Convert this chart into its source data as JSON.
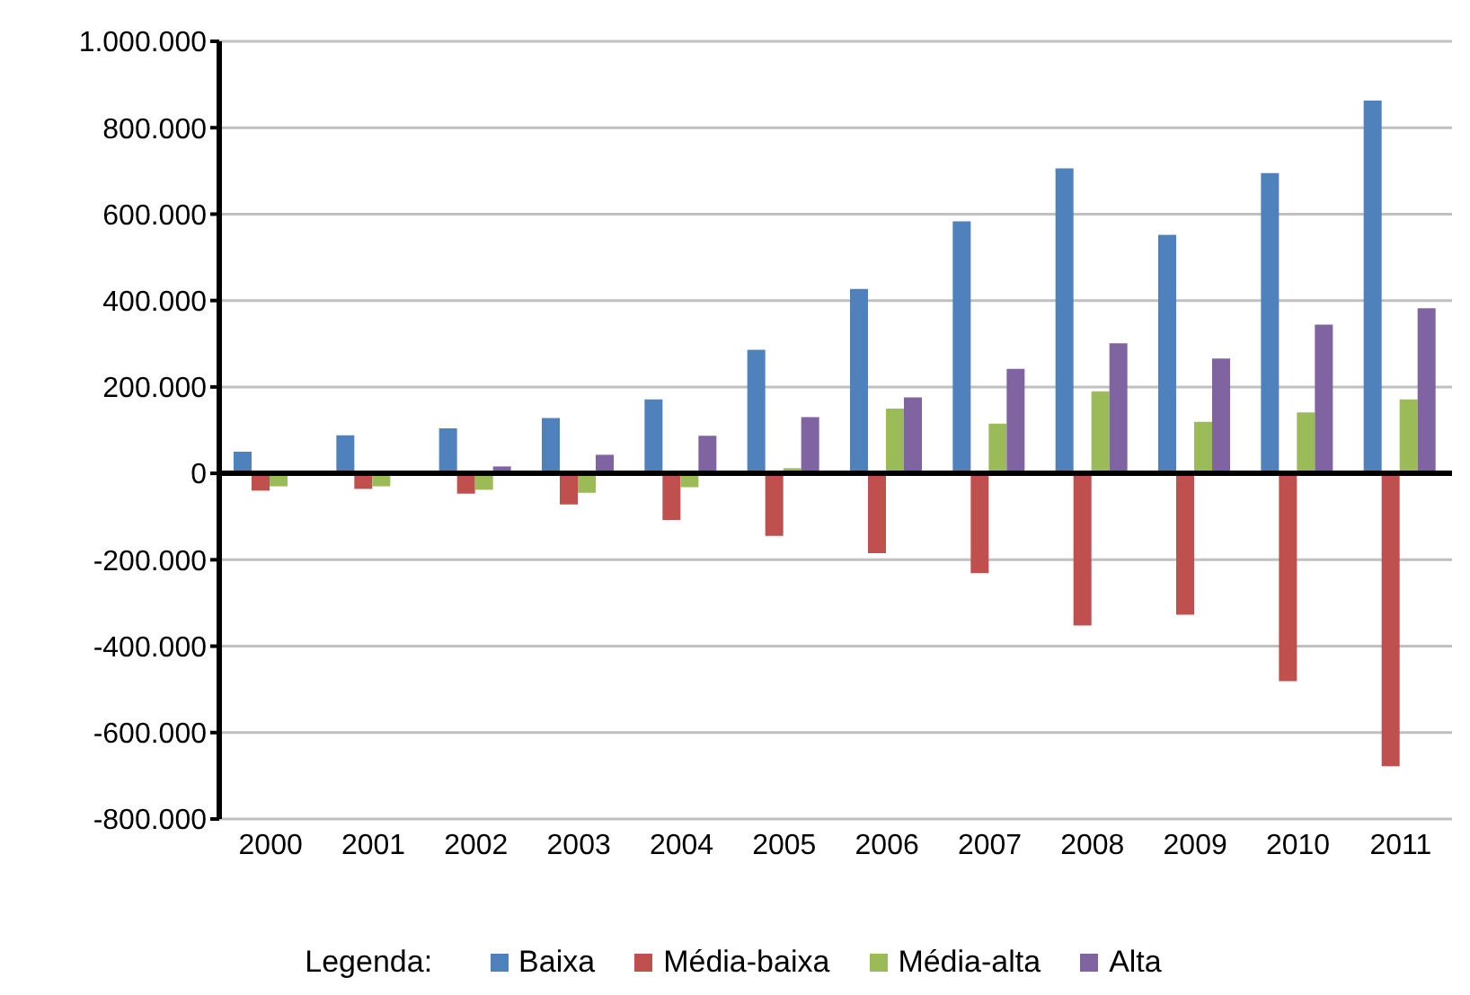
{
  "chart_data": {
    "type": "bar",
    "categories": [
      "2000",
      "2001",
      "2002",
      "2003",
      "2004",
      "2005",
      "2006",
      "2007",
      "2008",
      "2009",
      "2010",
      "2011"
    ],
    "series": [
      {
        "name": "Baixa",
        "color": "#4f81bd",
        "values": [
          50000,
          88000,
          104000,
          128000,
          171000,
          286000,
          427000,
          583000,
          706000,
          552000,
          695000,
          863000
        ]
      },
      {
        "name": "Média-baixa",
        "color": "#c0504d",
        "values": [
          -40000,
          -36000,
          -47000,
          -72000,
          -108000,
          -145000,
          -185000,
          -231000,
          -352000,
          -327000,
          -481000,
          -678000
        ]
      },
      {
        "name": "Média-alta",
        "color": "#9bbb59",
        "values": [
          -30000,
          -30000,
          -38000,
          -45000,
          -32000,
          12000,
          150000,
          115000,
          190000,
          119000,
          141000,
          171000
        ]
      },
      {
        "name": "Alta",
        "color": "#8064a2",
        "values": [
          0,
          0,
          16000,
          43000,
          87000,
          130000,
          176000,
          242000,
          301000,
          266000,
          344000,
          382000
        ]
      }
    ],
    "ylim": [
      -800000,
      1000000
    ],
    "yticks": [
      {
        "value": -800000,
        "label": "-800.000"
      },
      {
        "value": -600000,
        "label": "-600.000"
      },
      {
        "value": -400000,
        "label": "-400.000"
      },
      {
        "value": -200000,
        "label": "-200.000"
      },
      0,
      {
        "value": 200000,
        "label": "200.000"
      },
      {
        "value": 400000,
        "label": "400.000"
      },
      {
        "value": 600000,
        "label": "600.000"
      },
      {
        "value": 800000,
        "label": "800.000"
      },
      {
        "value": 1000000,
        "label": "1.000.000"
      }
    ],
    "grid": "y",
    "legend": "bottom",
    "legend_title": "Legenda:"
  }
}
